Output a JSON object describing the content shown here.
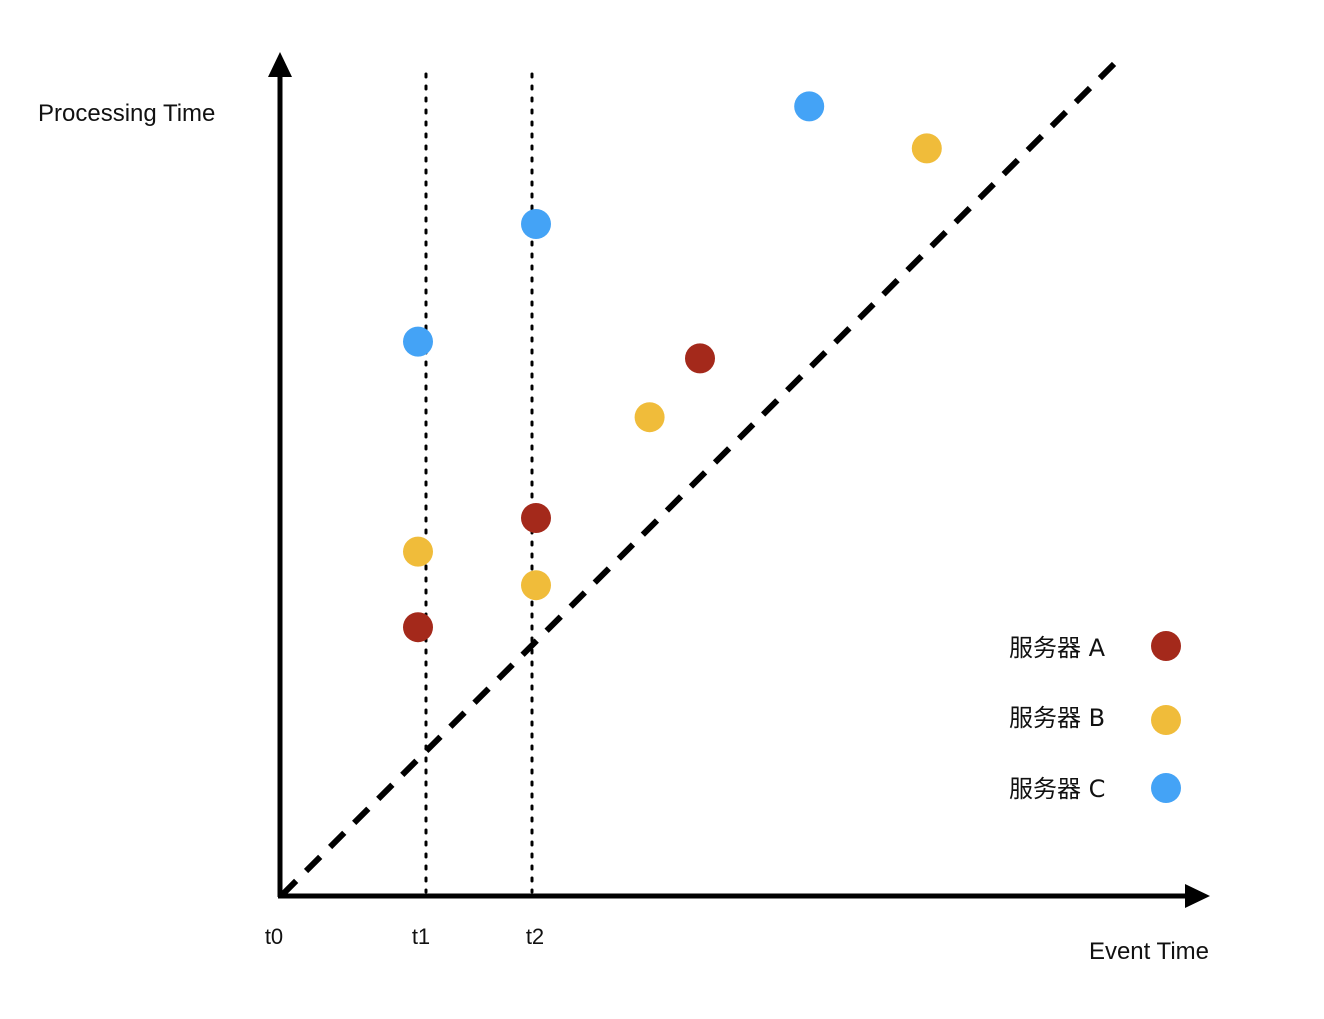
{
  "axes": {
    "y_label": "Processing Time",
    "x_label": "Event Time",
    "x_ticks": [
      "t0",
      "t1",
      "t2"
    ]
  },
  "colors": {
    "server_a": "#a4291b",
    "server_b": "#f0bc3a",
    "server_c": "#44a3f6",
    "axis": "#000000"
  },
  "legend": [
    {
      "label": "服务器 A",
      "series": "server_a"
    },
    {
      "label": "服务器 B",
      "series": "server_b"
    },
    {
      "label": "服务器 C",
      "series": "server_c"
    }
  ],
  "points": [
    {
      "series": "server_a",
      "event_time": "t1",
      "processing_time": 0.32
    },
    {
      "series": "server_b",
      "event_time": "t1",
      "processing_time": 0.41
    },
    {
      "series": "server_c",
      "event_time": "t1",
      "processing_time": 0.66
    },
    {
      "series": "server_b",
      "event_time": "t2",
      "processing_time": 0.37
    },
    {
      "series": "server_a",
      "event_time": "t2",
      "processing_time": 0.45
    },
    {
      "series": "server_c",
      "event_time": "t2",
      "processing_time": 0.8
    },
    {
      "series": "server_b",
      "event_time": 0.44,
      "processing_time": 0.57
    },
    {
      "series": "server_a",
      "event_time": 0.5,
      "processing_time": 0.64
    },
    {
      "series": "server_c",
      "event_time": 0.63,
      "processing_time": 0.94
    },
    {
      "series": "server_b",
      "event_time": 0.77,
      "processing_time": 0.89
    }
  ]
}
